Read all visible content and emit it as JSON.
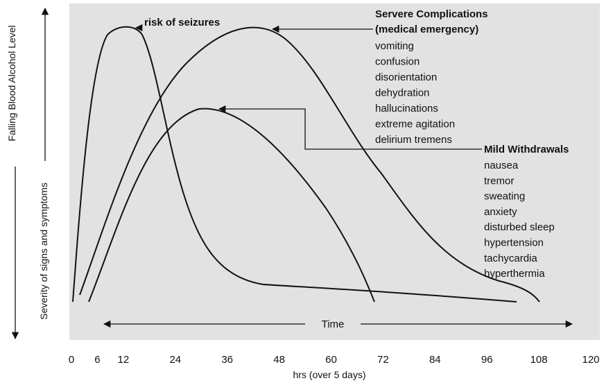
{
  "left_label": "Falling Blood Alcohol Level",
  "y_label": "Severity of signs and symptoms",
  "x_label": "hrs (over 5 days)",
  "x_axis": {
    "ticks": [
      0,
      6,
      12,
      24,
      36,
      48,
      60,
      72,
      84,
      96,
      108,
      120
    ],
    "lim": [
      0,
      120
    ]
  },
  "time_label": "Time",
  "seizure_label": "risk of seizures",
  "severe": {
    "title": [
      "Servere Complications",
      "(medical emergency)"
    ],
    "items": [
      "vomiting",
      "confusion",
      "disorientation",
      "dehydration",
      "hallucinations",
      "extreme agitation",
      "delirium tremens"
    ]
  },
  "mild": {
    "title": "Mild Withdrawals",
    "items": [
      "nausea",
      "tremor",
      "sweating",
      "anxiety",
      "disturbed sleep",
      "hypertension",
      "tachycardia",
      "hyperthermia"
    ]
  }
}
